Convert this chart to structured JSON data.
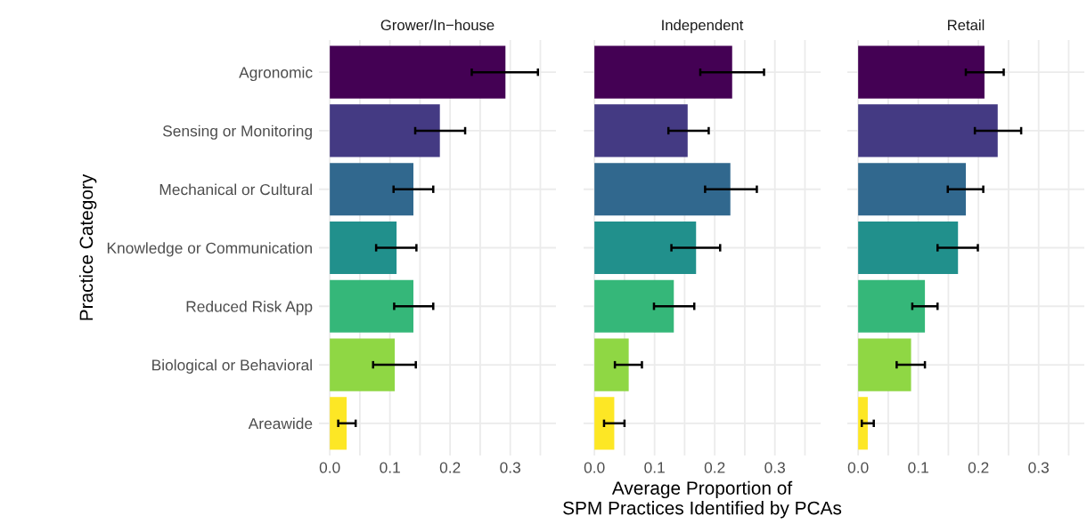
{
  "chart_data": [
    {
      "type": "bar",
      "orientation": "horizontal",
      "title": "Grower/In−house",
      "ylabel": "Practice Category",
      "categories": [
        "Agronomic",
        "Sensing or Monitoring",
        "Mechanical or Cultural",
        "Knowledge or Communication",
        "Reduced Risk App",
        "Biological or Behavioral",
        "Areawide"
      ],
      "values": [
        0.292,
        0.183,
        0.139,
        0.111,
        0.139,
        0.108,
        0.028
      ],
      "errors": [
        [
          0.236,
          0.346
        ],
        [
          0.142,
          0.225
        ],
        [
          0.106,
          0.172
        ],
        [
          0.077,
          0.144
        ],
        [
          0.107,
          0.172
        ],
        [
          0.072,
          0.143
        ],
        [
          0.014,
          0.043
        ]
      ],
      "colors": [
        "#440154",
        "#443a83",
        "#31688e",
        "#21908c",
        "#35b779",
        "#8fd744",
        "#fde725"
      ],
      "xlim": [
        -0.018,
        0.376
      ],
      "xticks": [
        {
          "value": 0,
          "label": "0.0"
        },
        {
          "value": 0.05,
          "label": null
        },
        0.1,
        {
          "value": 0.15,
          "label": null
        },
        0.2,
        {
          "value": 0.25,
          "label": null
        },
        0.3,
        {
          "value": 0.35,
          "label": null
        }
      ],
      "grid": true
    },
    {
      "type": "bar",
      "orientation": "horizontal",
      "title": "Independent",
      "xlabel": "Average Proportion of\nSPM Practices Identified by PCAs",
      "categories": [
        null,
        null,
        null,
        null,
        null,
        null,
        null
      ],
      "values": [
        0.229,
        0.155,
        0.226,
        0.169,
        0.132,
        0.057,
        0.033
      ],
      "errors": [
        [
          0.176,
          0.282
        ],
        [
          0.123,
          0.19
        ],
        [
          0.184,
          0.27
        ],
        [
          0.128,
          0.209
        ],
        [
          0.099,
          0.166
        ],
        [
          0.034,
          0.079
        ],
        [
          0.016,
          0.05
        ]
      ],
      "colors": [
        "#440154",
        "#443a83",
        "#31688e",
        "#21908c",
        "#35b779",
        "#8fd744",
        "#fde725"
      ],
      "xlim": [
        -0.018,
        0.376
      ],
      "xticks": [
        {
          "value": 0,
          "label": "0.0"
        },
        {
          "value": 0.05,
          "label": null
        },
        0.1,
        {
          "value": 0.15,
          "label": null
        },
        0.2,
        {
          "value": 0.25,
          "label": null
        },
        0.3,
        {
          "value": 0.35,
          "label": null
        }
      ],
      "grid": true,
      "tick_labels": "x"
    },
    {
      "type": "bar",
      "orientation": "horizontal",
      "title": "Retail",
      "categories": [
        null,
        null,
        null,
        null,
        null,
        null,
        null
      ],
      "values": [
        0.21,
        0.232,
        0.179,
        0.166,
        0.111,
        0.088,
        0.016
      ],
      "errors": [
        [
          0.179,
          0.242
        ],
        [
          0.194,
          0.271
        ],
        [
          0.149,
          0.208
        ],
        [
          0.132,
          0.199
        ],
        [
          0.09,
          0.132
        ],
        [
          0.064,
          0.111
        ],
        [
          0.006,
          0.026
        ]
      ],
      "colors": [
        "#440154",
        "#443a83",
        "#31688e",
        "#21908c",
        "#35b779",
        "#8fd744",
        "#fde725"
      ],
      "xlim": [
        -0.018,
        0.376
      ],
      "xticks": [
        {
          "value": 0,
          "label": "0.0"
        },
        {
          "value": 0.05,
          "label": null
        },
        0.1,
        {
          "value": 0.15,
          "label": null
        },
        0.2,
        {
          "value": 0.25,
          "label": null
        },
        0.3,
        {
          "value": 0.35,
          "label": null
        }
      ],
      "grid": true,
      "tick_labels": "x"
    }
  ]
}
